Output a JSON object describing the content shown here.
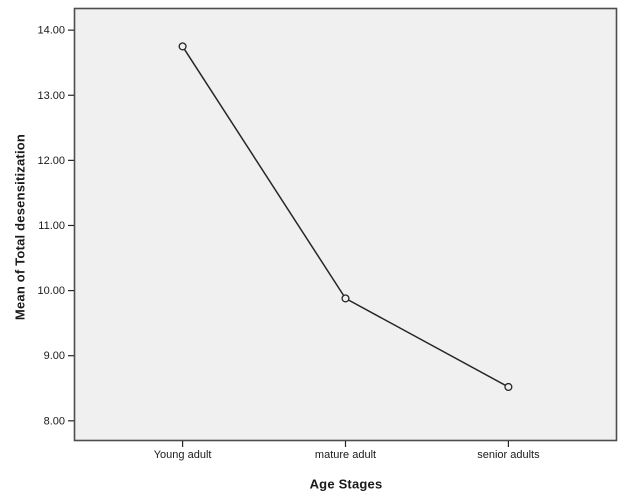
{
  "chart_data": {
    "type": "line",
    "title": "",
    "xlabel": "Age Stages",
    "ylabel": "Mean of Total desensitization",
    "categories": [
      "Young adult",
      "mature adult",
      "senior adults"
    ],
    "values": [
      13.75,
      9.88,
      8.52
    ],
    "y_ticks": [
      {
        "value": 14,
        "label": "14.00"
      },
      {
        "value": 13,
        "label": "13.00"
      },
      {
        "value": 12,
        "label": "12.00"
      },
      {
        "value": 11,
        "label": "11.00"
      },
      {
        "value": 10,
        "label": "10.00"
      },
      {
        "value": 9,
        "label": "9.00"
      },
      {
        "value": 8,
        "label": "8.00"
      }
    ],
    "ylim": [
      7.69,
      14.34
    ],
    "grid": false,
    "legend": false,
    "marker": "open-circle",
    "colors": {
      "plot_background": "#f0f0f0",
      "plot_border": "#4d4d4d",
      "line": "#262626",
      "tick": "#262626",
      "tick_label": "#1a1a1a"
    }
  }
}
